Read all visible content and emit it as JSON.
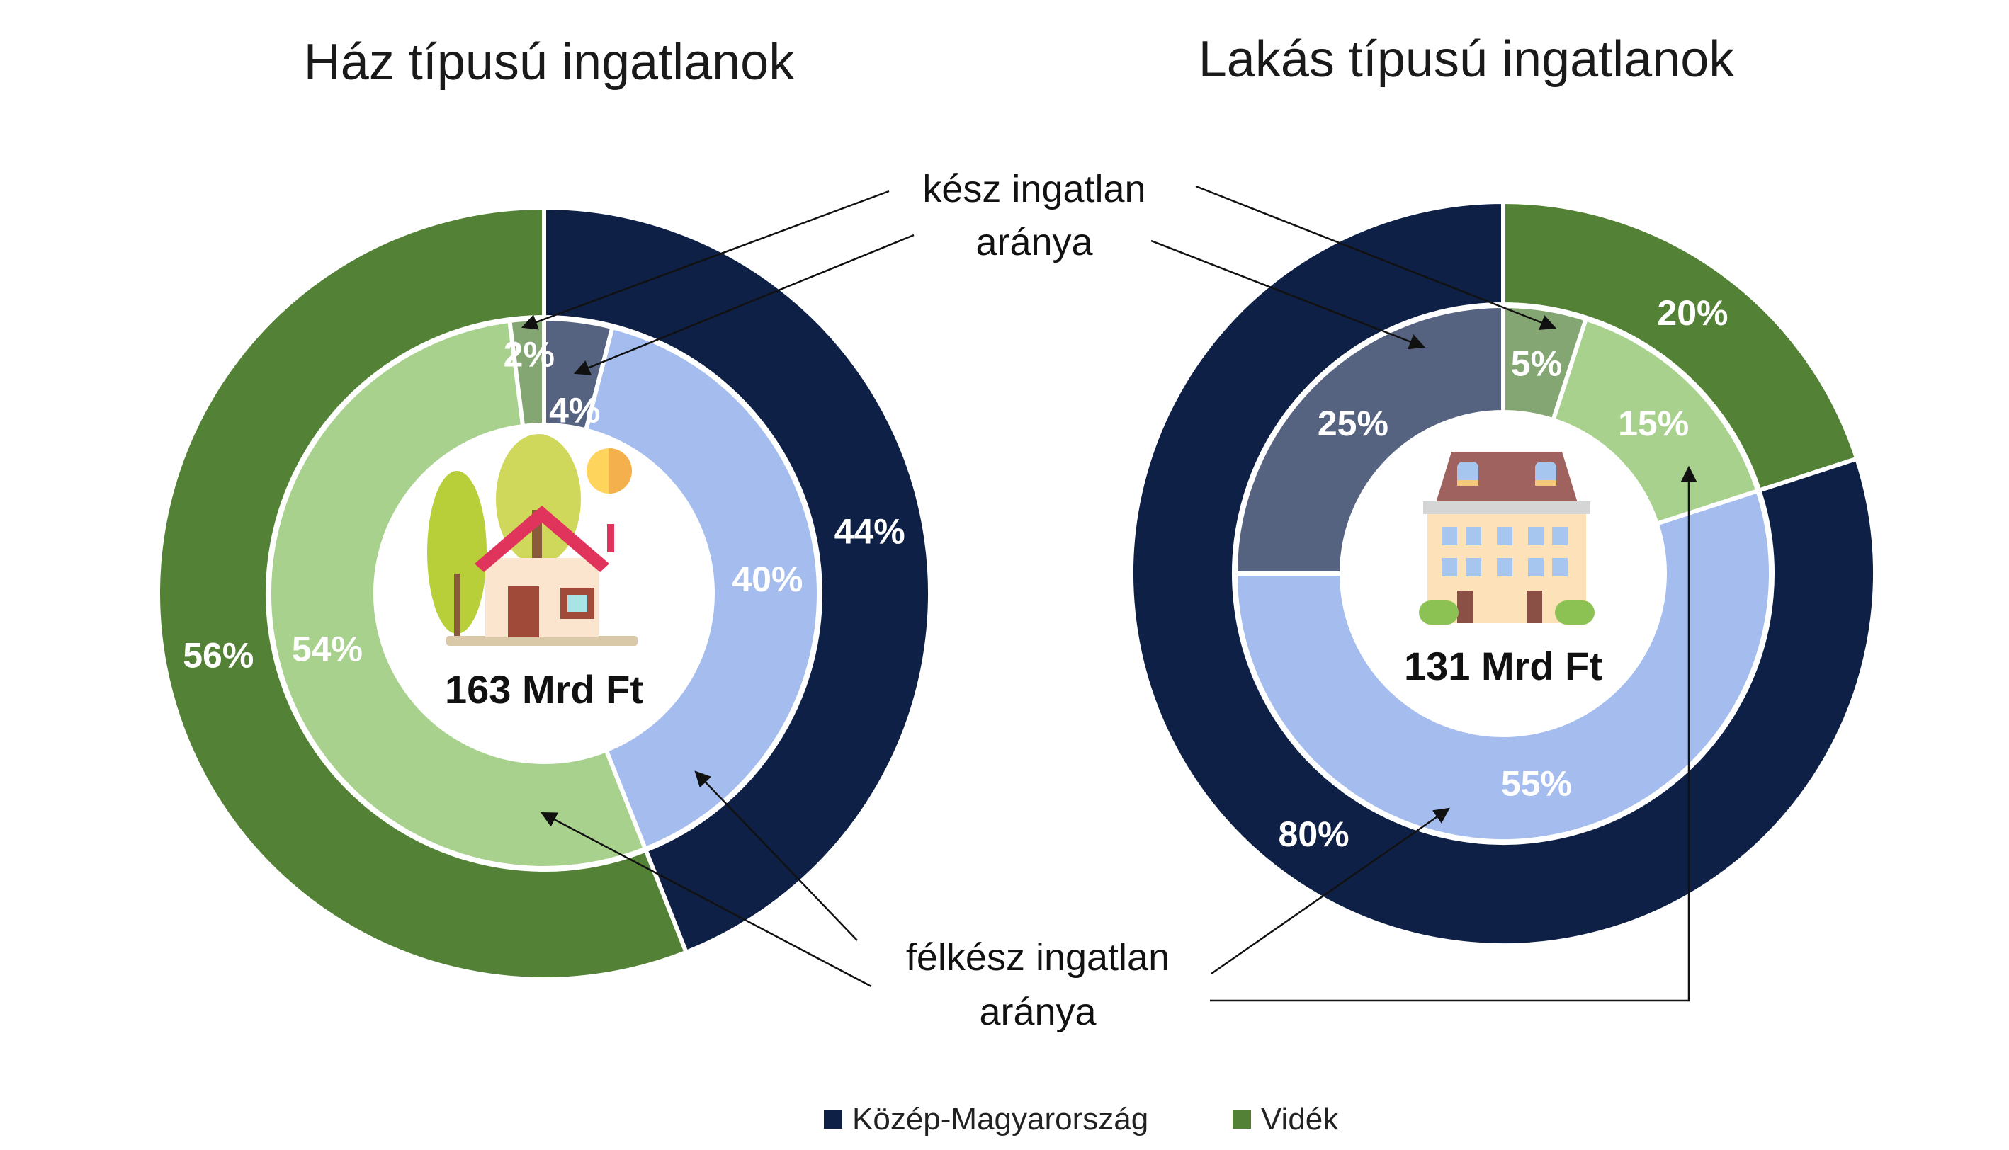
{
  "chart_data": [
    {
      "type": "donut",
      "title": "Ház típusú ingatlanok",
      "center_label": "163 Mrd Ft",
      "icon": "house-icon",
      "outer_ring": [
        {
          "category": "Közép-Magyarország",
          "value": 44,
          "label": "44%"
        },
        {
          "category": "Vidék",
          "value": 56,
          "label": "56%"
        }
      ],
      "inner_ring": [
        {
          "category": "Közép-Magyarország",
          "kind": "kész",
          "value": 4,
          "label": "4%"
        },
        {
          "category": "Közép-Magyarország",
          "kind": "félkész",
          "value": 40,
          "label": "40%"
        },
        {
          "category": "Vidék",
          "kind": "félkész",
          "value": 54,
          "label": "54%"
        },
        {
          "category": "Vidék",
          "kind": "kész",
          "value": 2,
          "label": "2%"
        }
      ]
    },
    {
      "type": "donut",
      "title": "Lakás típusú ingatlanok",
      "center_label": "131 Mrd Ft",
      "icon": "apartment-building-icon",
      "outer_ring": [
        {
          "category": "Vidék",
          "value": 20,
          "label": "20%"
        },
        {
          "category": "Közép-Magyarország",
          "value": 80,
          "label": "80%"
        }
      ],
      "inner_ring": [
        {
          "category": "Vidék",
          "kind": "kész",
          "value": 5,
          "label": "5%"
        },
        {
          "category": "Vidék",
          "kind": "félkész",
          "value": 15,
          "label": "15%"
        },
        {
          "category": "Közép-Magyarország",
          "kind": "félkész",
          "value": 55,
          "label": "55%"
        },
        {
          "category": "Közép-Magyarország",
          "kind": "kész",
          "value": 25,
          "label": "25%"
        }
      ]
    }
  ],
  "annotations": {
    "kesz_line1": "kész ingatlan",
    "kesz_line2": "aránya",
    "felkesz_line1": "félkész ingatlan",
    "felkesz_line2": "aránya"
  },
  "legend": [
    {
      "name": "Közép-Magyarország",
      "color": "#0e2046"
    },
    {
      "name": "Vidék",
      "color": "#538135"
    }
  ],
  "colors": {
    "kozep_outer": "#0e2046",
    "videk_outer": "#538135",
    "kozep_felkesz": "#a4bdee",
    "kozep_kesz": "#556280",
    "videk_felkesz": "#a9d18e",
    "videk_kesz": "#84a672"
  }
}
